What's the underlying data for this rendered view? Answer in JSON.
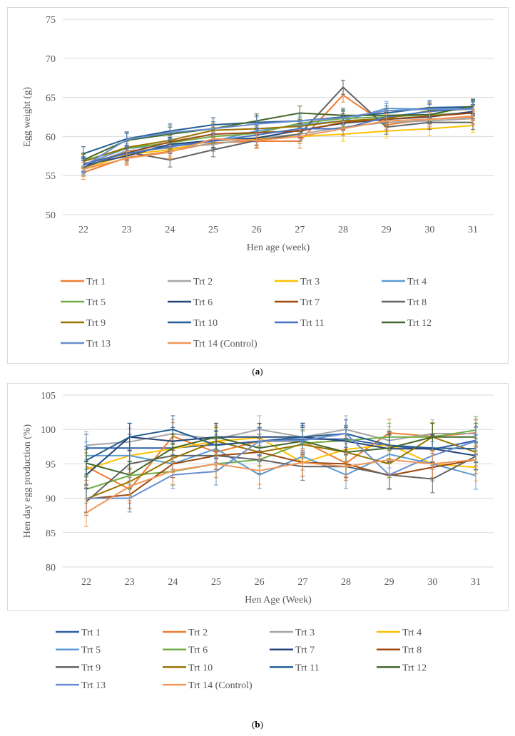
{
  "chart_data": [
    {
      "type": "line",
      "id": "a",
      "caption": "a",
      "xlabel": "Hen age (week)",
      "ylabel": "Egg weight (g)",
      "x": [
        22,
        23,
        24,
        25,
        26,
        27,
        28,
        29,
        30,
        31
      ],
      "ylim": [
        50,
        75
      ],
      "yticks": [
        50,
        55,
        60,
        65,
        70,
        75
      ],
      "grid": true,
      "legend_position": "bottom",
      "error_bar": 0.9,
      "series": [
        {
          "name": "Trt 1",
          "color": "#ed7d31",
          "values": [
            55.4,
            57.3,
            58.1,
            59.2,
            59.4,
            59.4,
            65.3,
            61.5,
            62.2,
            62.5
          ]
        },
        {
          "name": "Trt 2",
          "color": "#a5a5a5",
          "values": [
            56.0,
            58.2,
            58.5,
            59.0,
            59.8,
            60.3,
            61.2,
            61.8,
            62.0,
            62.3
          ]
        },
        {
          "name": "Trt 3",
          "color": "#ffc000",
          "values": [
            55.8,
            57.7,
            58.3,
            59.5,
            59.7,
            60.0,
            60.3,
            60.7,
            61.0,
            61.4
          ]
        },
        {
          "name": "Trt 4",
          "color": "#5b9bd5",
          "values": [
            56.4,
            58.5,
            58.8,
            59.4,
            60.7,
            61.5,
            62.0,
            63.6,
            63.5,
            63.7
          ]
        },
        {
          "name": "Trt 5",
          "color": "#70ad47",
          "values": [
            56.9,
            58.5,
            59.2,
            60.0,
            60.4,
            61.7,
            62.3,
            62.5,
            62.8,
            63.0
          ]
        },
        {
          "name": "Trt 6",
          "color": "#264478",
          "values": [
            56.3,
            57.5,
            59.0,
            59.5,
            59.8,
            60.8,
            61.7,
            62.2,
            62.5,
            63.2
          ]
        },
        {
          "name": "Trt 7",
          "color": "#9e480e",
          "values": [
            56.5,
            57.9,
            59.3,
            60.3,
            60.5,
            60.7,
            61.8,
            62.2,
            62.6,
            63.0
          ]
        },
        {
          "name": "Trt 8",
          "color": "#636363",
          "values": [
            56.0,
            58.0,
            57.0,
            58.3,
            59.5,
            60.3,
            66.3,
            61.2,
            61.8,
            61.8
          ]
        },
        {
          "name": "Trt 9",
          "color": "#997300",
          "values": [
            56.8,
            58.6,
            59.5,
            60.8,
            61.0,
            61.3,
            62.0,
            62.3,
            63.3,
            63.5
          ]
        },
        {
          "name": "Trt 10",
          "color": "#255e91",
          "values": [
            57.8,
            59.7,
            60.7,
            61.5,
            61.8,
            62.0,
            62.5,
            63.0,
            63.7,
            63.8
          ]
        },
        {
          "name": "Trt 11",
          "color": "#4472c4",
          "values": [
            56.5,
            57.8,
            58.7,
            59.4,
            60.2,
            61.0,
            61.0,
            62.5,
            63.2,
            63.6
          ]
        },
        {
          "name": "Trt 12",
          "color": "#43682b",
          "values": [
            57.0,
            59.5,
            60.3,
            61.0,
            62.0,
            63.0,
            62.7,
            62.7,
            62.8,
            63.9
          ]
        },
        {
          "name": "Trt 13",
          "color": "#698ed0",
          "values": [
            56.2,
            59.6,
            60.5,
            61.0,
            61.6,
            62.0,
            62.4,
            63.3,
            63.5,
            63.5
          ]
        },
        {
          "name": "Trt 14 (Control)",
          "color": "#f1975a",
          "values": [
            55.8,
            57.2,
            58.0,
            59.7,
            59.5,
            60.0,
            61.0,
            62.0,
            62.2,
            62.6
          ]
        }
      ]
    },
    {
      "type": "line",
      "id": "b",
      "caption": "b",
      "xlabel": "Hen Age (Week)",
      "ylabel": "Hen day egg production (%)",
      "x": [
        22,
        23,
        24,
        25,
        26,
        27,
        28,
        29,
        30,
        31
      ],
      "ylim": [
        80,
        105
      ],
      "yticks": [
        80,
        85,
        90,
        95,
        100,
        105
      ],
      "grid": true,
      "legend_position": "bottom",
      "error_bar": 2.0,
      "series": [
        {
          "name": "Trt 1",
          "color": "#2f5ea8",
          "values": [
            97.3,
            97.3,
            97.3,
            97.8,
            98.2,
            98.6,
            98.6,
            97.6,
            97.1,
            98.4
          ]
        },
        {
          "name": "Trt 2",
          "color": "#ed7d31",
          "values": [
            94.6,
            91.3,
            99.0,
            96.7,
            98.3,
            98.3,
            95.1,
            99.5,
            99.0,
            99.5
          ]
        },
        {
          "name": "Trt 3",
          "color": "#a5a5a5",
          "values": [
            97.7,
            98.2,
            99.4,
            98.6,
            100.0,
            98.9,
            100.0,
            98.4,
            99.4,
            99.4
          ]
        },
        {
          "name": "Trt 4",
          "color": "#ffc000",
          "values": [
            94.2,
            96.2,
            97.2,
            98.3,
            98.8,
            95.2,
            97.1,
            97.8,
            95.0,
            94.5
          ]
        },
        {
          "name": "Trt 5",
          "color": "#5b9bd5",
          "values": [
            96.2,
            96.2,
            95.0,
            97.2,
            93.4,
            96.1,
            93.4,
            96.4,
            95.0,
            93.3
          ]
        },
        {
          "name": "Trt 6",
          "color": "#70ad47",
          "values": [
            91.3,
            93.3,
            93.9,
            95.0,
            95.6,
            98.0,
            98.4,
            98.9,
            98.9,
            99.9
          ]
        },
        {
          "name": "Trt 7",
          "color": "#264478",
          "values": [
            93.4,
            98.9,
            98.3,
            98.9,
            98.9,
            98.9,
            98.3,
            97.2,
            97.2,
            96.2
          ]
        },
        {
          "name": "Trt 8",
          "color": "#9e480e",
          "values": [
            89.9,
            90.5,
            95.0,
            96.2,
            96.7,
            95.2,
            95.0,
            93.3,
            94.5,
            95.6
          ]
        },
        {
          "name": "Trt 9",
          "color": "#636363",
          "values": [
            89.5,
            95.0,
            96.2,
            96.2,
            95.6,
            94.6,
            94.6,
            93.4,
            92.8,
            96.1
          ]
        },
        {
          "name": "Trt 10",
          "color": "#997300",
          "values": [
            89.9,
            92.4,
            95.8,
            98.3,
            96.7,
            97.8,
            96.7,
            95.0,
            98.9,
            96.7
          ]
        },
        {
          "name": "Trt 11",
          "color": "#255e91",
          "values": [
            95.5,
            98.9,
            100.0,
            97.7,
            98.3,
            98.9,
            99.4,
            97.7,
            97.3,
            97.2
          ]
        },
        {
          "name": "Trt 12",
          "color": "#43682b",
          "values": [
            95.1,
            93.4,
            97.3,
            98.9,
            97.3,
            98.3,
            96.7,
            97.3,
            98.9,
            98.9
          ]
        },
        {
          "name": "Trt 13",
          "color": "#698ed0",
          "values": [
            90.0,
            90.0,
            93.4,
            93.9,
            98.3,
            98.4,
            99.4,
            93.4,
            96.2,
            98.3
          ]
        },
        {
          "name": "Trt 14 (Control)",
          "color": "#f1975a",
          "values": [
            87.9,
            91.7,
            94.0,
            95.0,
            94.0,
            95.2,
            94.6,
            95.6,
            95.0,
            95.6
          ]
        }
      ]
    }
  ]
}
